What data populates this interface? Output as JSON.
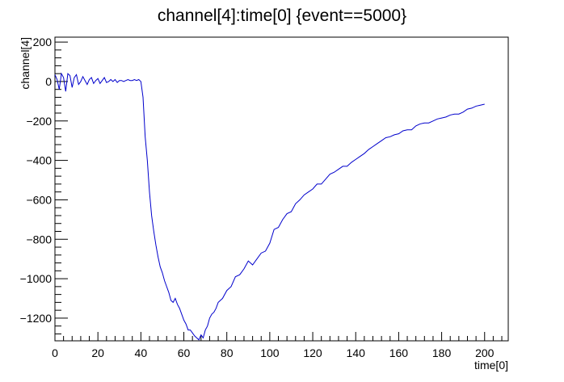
{
  "chart_data": {
    "type": "line",
    "title": "channel[4]:time[0] {event==5000}",
    "xlabel": "time[0]",
    "ylabel": "channel[4]",
    "xlim": [
      0,
      211
    ],
    "ylim": [
      -1315,
      225
    ],
    "x_ticks": [
      0,
      20,
      40,
      60,
      80,
      100,
      120,
      140,
      160,
      180,
      200
    ],
    "x_tick_labels": [
      "0",
      "20",
      "40",
      "60",
      "80",
      "100",
      "120",
      "140",
      "160",
      "180",
      "200"
    ],
    "y_ticks": [
      200,
      0,
      -200,
      -400,
      -600,
      -800,
      -1000,
      -1200
    ],
    "y_tick_labels": [
      "200",
      "0",
      "−200",
      "−400",
      "−600",
      "−800",
      "−1000",
      "−1200"
    ],
    "grid": false,
    "line_color": "#0000cc",
    "series": [
      {
        "x": [
          0,
          1,
          2,
          3,
          4,
          5,
          6,
          7,
          8,
          9,
          10,
          11,
          12,
          13,
          14,
          15,
          16,
          17,
          18,
          19,
          20,
          21,
          22,
          23,
          24,
          25,
          26,
          27,
          28,
          29,
          30,
          31,
          32,
          33,
          34,
          35,
          36,
          37,
          38,
          39,
          40,
          41,
          42,
          43,
          44,
          45,
          46,
          47,
          48,
          49,
          50,
          51,
          52,
          53,
          54,
          55,
          56,
          57,
          58,
          59,
          60,
          61,
          62,
          63,
          64,
          65,
          66,
          67,
          68,
          69,
          70,
          71,
          72,
          73,
          74,
          75,
          76,
          78,
          80,
          82,
          84,
          86,
          88,
          90,
          92,
          94,
          96,
          98,
          100,
          102,
          104,
          106,
          108,
          110,
          112,
          114,
          116,
          118,
          120,
          122,
          124,
          126,
          128,
          130,
          132,
          134,
          136,
          138,
          140,
          142,
          144,
          146,
          148,
          150,
          152,
          154,
          156,
          158,
          160,
          162,
          164,
          166,
          168,
          170,
          172,
          174,
          176,
          178,
          180,
          182,
          184,
          186,
          188,
          190,
          192,
          194,
          196,
          198,
          200
        ],
        "y": [
          35,
          10,
          -40,
          40,
          20,
          -50,
          40,
          30,
          -30,
          20,
          35,
          -15,
          0,
          25,
          5,
          -15,
          10,
          20,
          -10,
          5,
          15,
          -10,
          5,
          20,
          -5,
          0,
          10,
          0,
          10,
          -5,
          5,
          5,
          0,
          5,
          10,
          5,
          5,
          10,
          5,
          10,
          0,
          -80,
          -280,
          -400,
          -560,
          -680,
          -760,
          -830,
          -890,
          -940,
          -970,
          -1010,
          -1040,
          -1070,
          -1110,
          -1120,
          -1100,
          -1130,
          -1150,
          -1180,
          -1210,
          -1230,
          -1260,
          -1260,
          -1275,
          -1290,
          -1300,
          -1310,
          -1285,
          -1300,
          -1260,
          -1240,
          -1200,
          -1180,
          -1170,
          -1150,
          -1120,
          -1100,
          -1060,
          -1040,
          -990,
          -980,
          -950,
          -910,
          -930,
          -900,
          -870,
          -860,
          -820,
          -750,
          -740,
          -700,
          -670,
          -660,
          -620,
          -600,
          -575,
          -560,
          -545,
          -520,
          -520,
          -495,
          -470,
          -460,
          -445,
          -430,
          -430,
          -410,
          -395,
          -380,
          -365,
          -345,
          -330,
          -315,
          -300,
          -285,
          -280,
          -270,
          -265,
          -250,
          -245,
          -245,
          -225,
          -215,
          -210,
          -210,
          -200,
          -190,
          -185,
          -180,
          -170,
          -165,
          -165,
          -155,
          -140,
          -135,
          -125,
          -120,
          -115
        ]
      }
    ]
  }
}
